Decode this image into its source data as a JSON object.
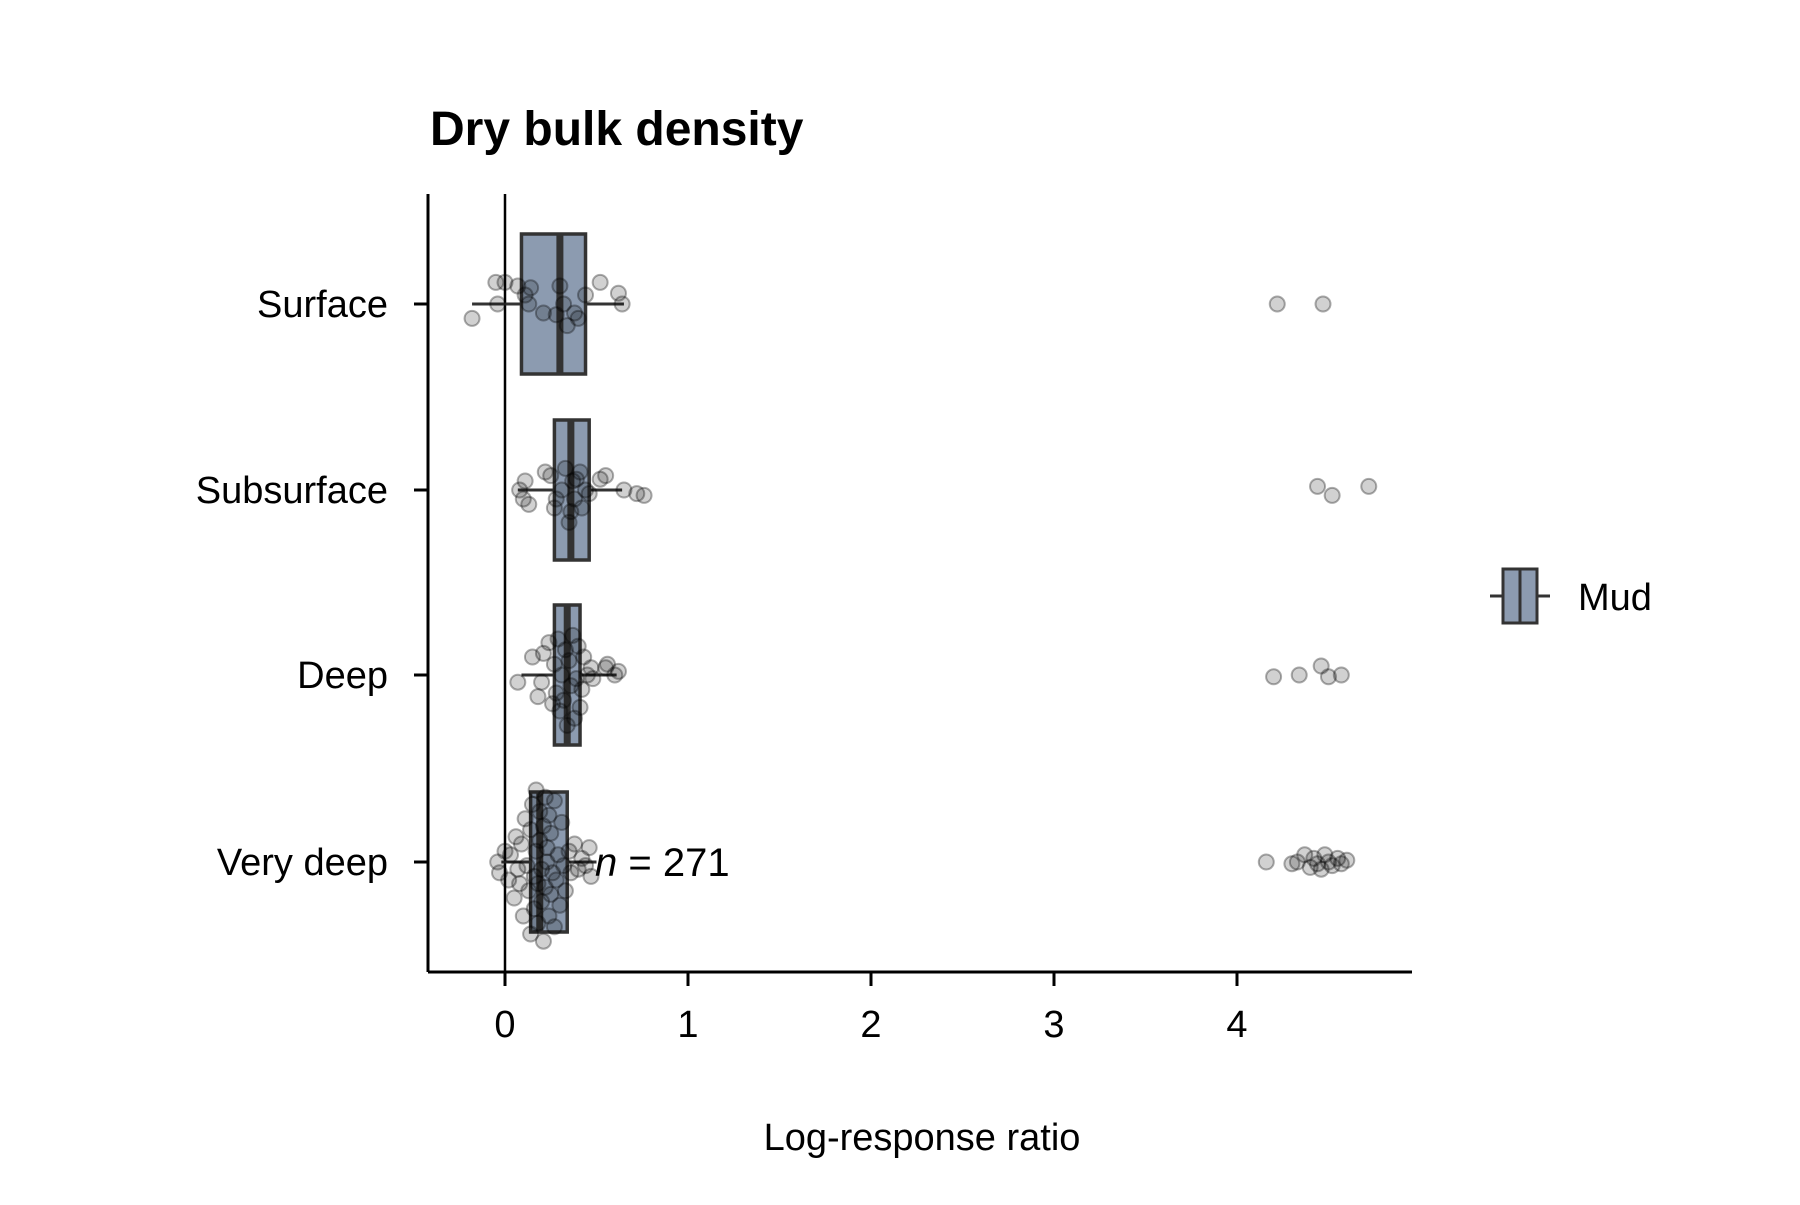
{
  "chart_data": {
    "type": "boxplot",
    "title": "Dry bulk density",
    "xlabel": "Log-response ratio",
    "ylabel": "",
    "xlim": [
      -0.42,
      4.95
    ],
    "xticks": [
      0,
      1,
      2,
      3,
      4
    ],
    "reference_line_x": 0,
    "categories": [
      "Surface",
      "Subsurface",
      "Deep",
      "Very deep"
    ],
    "legend": {
      "position": "right",
      "entries": [
        "Mud"
      ]
    },
    "annotation": {
      "italic": "n",
      "text": " = 271"
    },
    "colors": {
      "box_fill": "#8c9bb0",
      "box_edge": "#333333",
      "point": "#000000"
    },
    "series": [
      {
        "name": "Mud",
        "boxes": [
          {
            "category": "Surface",
            "whisker_low": -0.18,
            "q1": 0.09,
            "median": 0.3,
            "q3": 0.44,
            "whisker_high": 0.65,
            "points": [
              [
                -0.18,
                0.08
              ],
              [
                -0.05,
                -0.12
              ],
              [
                0.0,
                -0.12
              ],
              [
                -0.04,
                0.0
              ],
              [
                0.07,
                -0.1
              ],
              [
                0.11,
                -0.05
              ],
              [
                0.13,
                0.0
              ],
              [
                0.14,
                -0.09
              ],
              [
                0.21,
                0.05
              ],
              [
                0.28,
                0.06
              ],
              [
                0.3,
                -0.1
              ],
              [
                0.32,
                0.0
              ],
              [
                0.34,
                0.12
              ],
              [
                0.38,
                0.05
              ],
              [
                0.4,
                0.08
              ],
              [
                0.44,
                -0.05
              ],
              [
                0.52,
                -0.12
              ],
              [
                0.62,
                -0.06
              ],
              [
                0.64,
                0.0
              ],
              [
                4.22,
                0.0
              ],
              [
                4.47,
                0.0
              ]
            ]
          },
          {
            "category": "Subsurface",
            "whisker_low": 0.07,
            "q1": 0.27,
            "median": 0.36,
            "q3": 0.46,
            "whisker_high": 0.64,
            "points": [
              [
                0.08,
                0.0
              ],
              [
                0.1,
                0.05
              ],
              [
                0.11,
                -0.05
              ],
              [
                0.13,
                0.08
              ],
              [
                0.22,
                -0.1
              ],
              [
                0.25,
                -0.08
              ],
              [
                0.27,
                0.1
              ],
              [
                0.28,
                0.05
              ],
              [
                0.31,
                0.0
              ],
              [
                0.33,
                -0.12
              ],
              [
                0.35,
                0.18
              ],
              [
                0.36,
                0.12
              ],
              [
                0.37,
                -0.05
              ],
              [
                0.38,
                0.05
              ],
              [
                0.39,
                -0.06
              ],
              [
                0.41,
                -0.1
              ],
              [
                0.42,
                0.1
              ],
              [
                0.44,
                0.0
              ],
              [
                0.46,
                0.02
              ],
              [
                0.52,
                -0.06
              ],
              [
                0.55,
                -0.08
              ],
              [
                0.65,
                0.0
              ],
              [
                0.72,
                0.02
              ],
              [
                0.76,
                0.03
              ],
              [
                4.44,
                -0.02
              ],
              [
                4.52,
                0.03
              ],
              [
                4.72,
                -0.02
              ]
            ]
          },
          {
            "category": "Deep",
            "whisker_low": 0.09,
            "q1": 0.27,
            "median": 0.34,
            "q3": 0.41,
            "whisker_high": 0.61,
            "points": [
              [
                0.07,
                0.04
              ],
              [
                0.15,
                -0.1
              ],
              [
                0.18,
                0.12
              ],
              [
                0.2,
                0.04
              ],
              [
                0.21,
                -0.12
              ],
              [
                0.24,
                -0.18
              ],
              [
                0.26,
                0.16
              ],
              [
                0.27,
                -0.06
              ],
              [
                0.28,
                0.1
              ],
              [
                0.29,
                -0.2
              ],
              [
                0.3,
                0.2
              ],
              [
                0.31,
                0.0
              ],
              [
                0.32,
                0.14
              ],
              [
                0.33,
                -0.14
              ],
              [
                0.34,
                0.28
              ],
              [
                0.35,
                -0.08
              ],
              [
                0.36,
                0.06
              ],
              [
                0.37,
                -0.22
              ],
              [
                0.38,
                0.24
              ],
              [
                0.39,
                0.02
              ],
              [
                0.4,
                -0.16
              ],
              [
                0.41,
                0.18
              ],
              [
                0.42,
                0.08
              ],
              [
                0.43,
                -0.1
              ],
              [
                0.45,
                0.0
              ],
              [
                0.47,
                -0.04
              ],
              [
                0.48,
                0.02
              ],
              [
                0.55,
                -0.04
              ],
              [
                0.56,
                -0.06
              ],
              [
                0.6,
                0.0
              ],
              [
                0.62,
                -0.02
              ],
              [
                4.2,
                0.01
              ],
              [
                4.34,
                0.0
              ],
              [
                4.46,
                -0.05
              ],
              [
                4.5,
                0.01
              ],
              [
                4.57,
                0.0
              ]
            ]
          },
          {
            "category": "Very deep",
            "whisker_low": -0.02,
            "q1": 0.14,
            "median": 0.19,
            "q3": 0.34,
            "whisker_high": 0.5,
            "points": [
              [
                -0.04,
                0.0
              ],
              [
                -0.03,
                0.06
              ],
              [
                0.0,
                -0.06
              ],
              [
                0.02,
                0.1
              ],
              [
                0.03,
                -0.04
              ],
              [
                0.05,
                0.2
              ],
              [
                0.06,
                -0.14
              ],
              [
                0.07,
                0.04
              ],
              [
                0.08,
                0.12
              ],
              [
                0.09,
                -0.1
              ],
              [
                0.1,
                0.3
              ],
              [
                0.11,
                -0.24
              ],
              [
                0.12,
                0.02
              ],
              [
                0.13,
                0.16
              ],
              [
                0.14,
                -0.18
              ],
              [
                0.14,
                0.4
              ],
              [
                0.15,
                -0.32
              ],
              [
                0.16,
                0.08
              ],
              [
                0.16,
                0.26
              ],
              [
                0.17,
                -0.06
              ],
              [
                0.17,
                -0.4
              ],
              [
                0.18,
                0.34
              ],
              [
                0.18,
                0.12
              ],
              [
                0.19,
                -0.12
              ],
              [
                0.19,
                -0.28
              ],
              [
                0.2,
                0.22
              ],
              [
                0.2,
                0.04
              ],
              [
                0.21,
                -0.2
              ],
              [
                0.21,
                0.44
              ],
              [
                0.22,
                -0.36
              ],
              [
                0.22,
                0.14
              ],
              [
                0.23,
                0.0
              ],
              [
                0.23,
                -0.08
              ],
              [
                0.24,
                0.3
              ],
              [
                0.24,
                -0.26
              ],
              [
                0.25,
                0.18
              ],
              [
                0.25,
                -0.16
              ],
              [
                0.26,
                0.06
              ],
              [
                0.27,
                0.36
              ],
              [
                0.27,
                -0.34
              ],
              [
                0.28,
                0.1
              ],
              [
                0.29,
                -0.04
              ],
              [
                0.3,
                0.24
              ],
              [
                0.31,
                -0.22
              ],
              [
                0.32,
                0.02
              ],
              [
                0.33,
                0.16
              ],
              [
                0.35,
                -0.06
              ],
              [
                0.36,
                0.06
              ],
              [
                0.38,
                -0.1
              ],
              [
                0.4,
                0.04
              ],
              [
                0.42,
                -0.02
              ],
              [
                0.44,
                0.02
              ],
              [
                0.46,
                -0.08
              ],
              [
                0.47,
                0.08
              ],
              [
                4.16,
                0.0
              ],
              [
                4.3,
                0.01
              ],
              [
                4.33,
                0.0
              ],
              [
                4.37,
                -0.04
              ],
              [
                4.4,
                0.03
              ],
              [
                4.42,
                -0.02
              ],
              [
                4.44,
                0.01
              ],
              [
                4.46,
                0.04
              ],
              [
                4.48,
                -0.04
              ],
              [
                4.5,
                0.0
              ],
              [
                4.52,
                0.02
              ],
              [
                4.55,
                -0.02
              ],
              [
                4.57,
                0.01
              ],
              [
                4.6,
                -0.01
              ]
            ]
          }
        ]
      }
    ]
  }
}
